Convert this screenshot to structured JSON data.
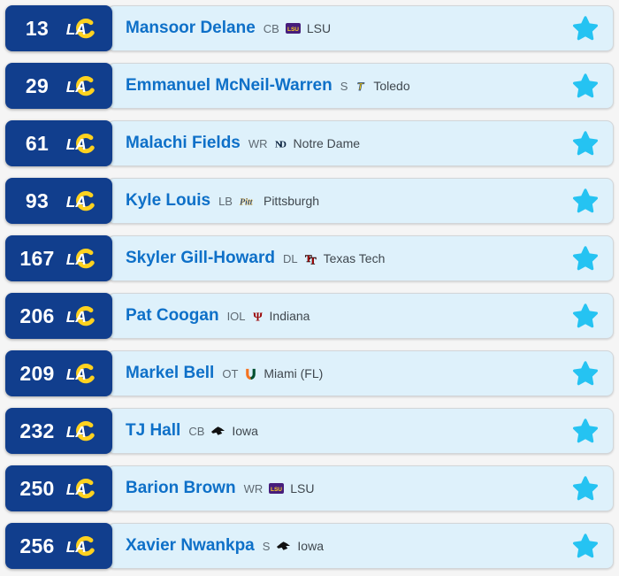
{
  "theme": {
    "team_blue": "#113e8d",
    "team_gold": "#ffd21f",
    "row_background": "#def1fb",
    "player_name_color": "#0e70c8",
    "star_color": "#25c3f2"
  },
  "team": {
    "logo_icon": "rams-la-logo"
  },
  "icons": {
    "favorite": "star-icon"
  },
  "rows": [
    {
      "pick": "13",
      "player": "Mansoor Delane",
      "position": "CB",
      "college": "LSU",
      "college_logo": "lsu-logo"
    },
    {
      "pick": "29",
      "player": "Emmanuel McNeil-Warren",
      "position": "S",
      "college": "Toledo",
      "college_logo": "toledo-logo"
    },
    {
      "pick": "61",
      "player": "Malachi Fields",
      "position": "WR",
      "college": "Notre Dame",
      "college_logo": "notre-dame-logo"
    },
    {
      "pick": "93",
      "player": "Kyle Louis",
      "position": "LB",
      "college": "Pittsburgh",
      "college_logo": "pittsburgh-logo"
    },
    {
      "pick": "167",
      "player": "Skyler Gill-Howard",
      "position": "DL",
      "college": "Texas Tech",
      "college_logo": "texas-tech-logo"
    },
    {
      "pick": "206",
      "player": "Pat Coogan",
      "position": "IOL",
      "college": "Indiana",
      "college_logo": "indiana-logo"
    },
    {
      "pick": "209",
      "player": "Markel Bell",
      "position": "OT",
      "college": "Miami (FL)",
      "college_logo": "miami-fl-logo"
    },
    {
      "pick": "232",
      "player": "TJ Hall",
      "position": "CB",
      "college": "Iowa",
      "college_logo": "iowa-logo"
    },
    {
      "pick": "250",
      "player": "Barion Brown",
      "position": "WR",
      "college": "LSU",
      "college_logo": "lsu-logo"
    },
    {
      "pick": "256",
      "player": "Xavier Nwankpa",
      "position": "S",
      "college": "Iowa",
      "college_logo": "iowa-logo"
    }
  ]
}
